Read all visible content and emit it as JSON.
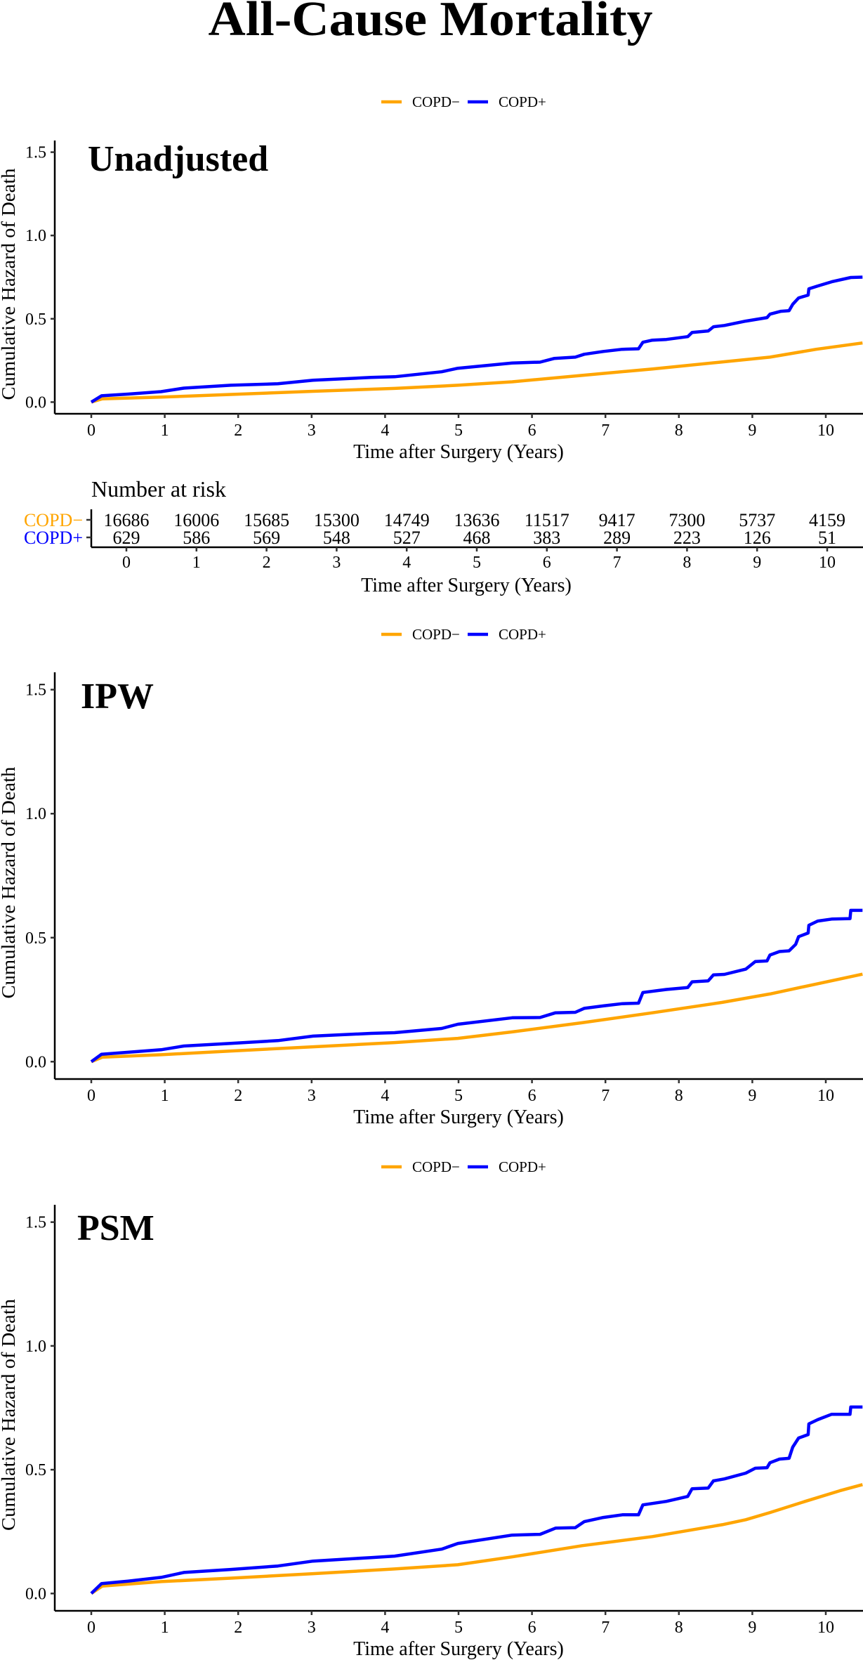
{
  "title": "All-Cause Mortality",
  "legend": {
    "items": [
      {
        "label": "COPD−",
        "color": "#FFA500"
      },
      {
        "label": "COPD+",
        "color": "#0000FF"
      }
    ]
  },
  "chart_data": [
    {
      "type": "line",
      "title": "Unadjusted",
      "xlabel": "Time after Surgery (Years)",
      "ylabel": "Cumulative Hazard of Death",
      "xlim": [
        -0.5,
        10.5
      ],
      "ylim": [
        -0.07,
        1.57
      ],
      "xticks": [
        "0",
        "1",
        "2",
        "3",
        "4",
        "5",
        "6",
        "7",
        "8",
        "9",
        "10"
      ],
      "yticks": [
        "0.0",
        "0.5",
        "1.0",
        "1.5"
      ],
      "grid": false,
      "legend": "top-center",
      "series": [
        {
          "name": "COPD−",
          "color": "#FFA500",
          "points": [
            [
              0,
              0
            ],
            [
              0.15,
              0.02
            ],
            [
              0.95,
              0.03
            ],
            [
              1.9,
              0.046
            ],
            [
              3.02,
              0.065
            ],
            [
              4.13,
              0.082
            ],
            [
              4.99,
              0.101
            ],
            [
              5.73,
              0.122
            ],
            [
              6.68,
              0.16
            ],
            [
              7.64,
              0.199
            ],
            [
              8.59,
              0.241
            ],
            [
              9.24,
              0.27
            ],
            [
              9.87,
              0.317
            ],
            [
              10.5,
              0.355
            ]
          ]
        },
        {
          "name": "COPD+",
          "color": "#0000FF",
          "points": [
            [
              0,
              0
            ],
            [
              0.14,
              0.038
            ],
            [
              0.5,
              0.048
            ],
            [
              0.95,
              0.063
            ],
            [
              1.26,
              0.084
            ],
            [
              1.9,
              0.101
            ],
            [
              2.54,
              0.11
            ],
            [
              3.02,
              0.131
            ],
            [
              3.81,
              0.148
            ],
            [
              4.13,
              0.152
            ],
            [
              4.77,
              0.182
            ],
            [
              4.99,
              0.203
            ],
            [
              5.73,
              0.235
            ],
            [
              6.11,
              0.24
            ],
            [
              6.3,
              0.262
            ],
            [
              6.59,
              0.27
            ],
            [
              6.71,
              0.287
            ],
            [
              6.97,
              0.304
            ],
            [
              7.23,
              0.317
            ],
            [
              7.45,
              0.32
            ],
            [
              7.51,
              0.359
            ],
            [
              7.64,
              0.372
            ],
            [
              7.83,
              0.376
            ],
            [
              8.12,
              0.393
            ],
            [
              8.18,
              0.418
            ],
            [
              8.4,
              0.427
            ],
            [
              8.47,
              0.452
            ],
            [
              8.62,
              0.46
            ],
            [
              8.91,
              0.486
            ],
            [
              9.2,
              0.507
            ],
            [
              9.24,
              0.528
            ],
            [
              9.39,
              0.545
            ],
            [
              9.5,
              0.549
            ],
            [
              9.55,
              0.587
            ],
            [
              9.63,
              0.625
            ],
            [
              9.76,
              0.642
            ],
            [
              9.77,
              0.68
            ],
            [
              9.89,
              0.697
            ],
            [
              10.08,
              0.722
            ],
            [
              10.34,
              0.748
            ],
            [
              10.5,
              0.75
            ]
          ]
        }
      ]
    },
    {
      "type": "line",
      "title": "IPW",
      "xlabel": "Time after Surgery (Years)",
      "ylabel": "Cumulative Hazard of Death",
      "xlim": [
        -0.5,
        10.5
      ],
      "ylim": [
        -0.07,
        1.57
      ],
      "xticks": [
        "0",
        "1",
        "2",
        "3",
        "4",
        "5",
        "6",
        "7",
        "8",
        "9",
        "10"
      ],
      "yticks": [
        "0.0",
        "0.5",
        "1.0",
        "1.5"
      ],
      "grid": false,
      "legend": "top-center",
      "series": [
        {
          "name": "COPD−",
          "color": "#FFA500",
          "points": [
            [
              0,
              0
            ],
            [
              0.15,
              0.018
            ],
            [
              0.95,
              0.028
            ],
            [
              1.9,
              0.043
            ],
            [
              3.02,
              0.06
            ],
            [
              4.13,
              0.077
            ],
            [
              4.99,
              0.094
            ],
            [
              5.73,
              0.12
            ],
            [
              6.68,
              0.157
            ],
            [
              7.64,
              0.197
            ],
            [
              8.59,
              0.239
            ],
            [
              9.24,
              0.273
            ],
            [
              9.87,
              0.313
            ],
            [
              10.5,
              0.353
            ]
          ]
        },
        {
          "name": "COPD+",
          "color": "#0000FF",
          "points": [
            [
              0,
              0
            ],
            [
              0.14,
              0.03
            ],
            [
              0.5,
              0.038
            ],
            [
              0.95,
              0.048
            ],
            [
              1.26,
              0.063
            ],
            [
              1.9,
              0.074
            ],
            [
              2.54,
              0.085
            ],
            [
              3.02,
              0.103
            ],
            [
              3.81,
              0.114
            ],
            [
              4.13,
              0.117
            ],
            [
              4.77,
              0.134
            ],
            [
              4.99,
              0.151
            ],
            [
              5.73,
              0.177
            ],
            [
              6.11,
              0.178
            ],
            [
              6.32,
              0.197
            ],
            [
              6.59,
              0.199
            ],
            [
              6.71,
              0.215
            ],
            [
              6.97,
              0.225
            ],
            [
              7.23,
              0.234
            ],
            [
              7.45,
              0.236
            ],
            [
              7.51,
              0.279
            ],
            [
              7.83,
              0.291
            ],
            [
              8.12,
              0.299
            ],
            [
              8.18,
              0.322
            ],
            [
              8.4,
              0.326
            ],
            [
              8.47,
              0.35
            ],
            [
              8.62,
              0.352
            ],
            [
              8.91,
              0.373
            ],
            [
              9.04,
              0.404
            ],
            [
              9.2,
              0.406
            ],
            [
              9.24,
              0.43
            ],
            [
              9.37,
              0.444
            ],
            [
              9.5,
              0.447
            ],
            [
              9.59,
              0.473
            ],
            [
              9.63,
              0.504
            ],
            [
              9.76,
              0.519
            ],
            [
              9.77,
              0.55
            ],
            [
              9.89,
              0.567
            ],
            [
              10.08,
              0.575
            ],
            [
              10.33,
              0.577
            ],
            [
              10.34,
              0.61
            ],
            [
              10.5,
              0.61
            ]
          ]
        }
      ]
    },
    {
      "type": "line",
      "title": "PSM",
      "xlabel": "Time after Surgery (Years)",
      "ylabel": "Cumulative Hazard of Death",
      "xlim": [
        -0.5,
        10.5
      ],
      "ylim": [
        -0.07,
        1.57
      ],
      "xticks": [
        "0",
        "1",
        "2",
        "3",
        "4",
        "5",
        "6",
        "7",
        "8",
        "9",
        "10"
      ],
      "yticks": [
        "0.0",
        "0.5",
        "1.0",
        "1.5"
      ],
      "grid": false,
      "legend": "top-center",
      "series": [
        {
          "name": "COPD−",
          "color": "#FFA500",
          "points": [
            [
              0,
              0
            ],
            [
              0.15,
              0.03
            ],
            [
              0.95,
              0.048
            ],
            [
              1.9,
              0.062
            ],
            [
              3.02,
              0.08
            ],
            [
              4.13,
              0.099
            ],
            [
              4.99,
              0.116
            ],
            [
              5.73,
              0.148
            ],
            [
              6.68,
              0.193
            ],
            [
              7.64,
              0.23
            ],
            [
              8.59,
              0.278
            ],
            [
              8.91,
              0.298
            ],
            [
              9.24,
              0.327
            ],
            [
              9.72,
              0.372
            ],
            [
              10.19,
              0.415
            ],
            [
              10.5,
              0.44
            ]
          ]
        },
        {
          "name": "COPD+",
          "color": "#0000FF",
          "points": [
            [
              0,
              0
            ],
            [
              0.14,
              0.04
            ],
            [
              0.5,
              0.05
            ],
            [
              0.95,
              0.065
            ],
            [
              1.26,
              0.085
            ],
            [
              1.9,
              0.097
            ],
            [
              2.54,
              0.111
            ],
            [
              3.02,
              0.131
            ],
            [
              3.81,
              0.145
            ],
            [
              4.13,
              0.151
            ],
            [
              4.77,
              0.179
            ],
            [
              4.99,
              0.202
            ],
            [
              5.73,
              0.236
            ],
            [
              6.11,
              0.239
            ],
            [
              6.32,
              0.264
            ],
            [
              6.59,
              0.266
            ],
            [
              6.71,
              0.29
            ],
            [
              6.97,
              0.307
            ],
            [
              7.23,
              0.318
            ],
            [
              7.45,
              0.318
            ],
            [
              7.51,
              0.358
            ],
            [
              7.83,
              0.372
            ],
            [
              8.12,
              0.392
            ],
            [
              8.18,
              0.423
            ],
            [
              8.4,
              0.426
            ],
            [
              8.47,
              0.455
            ],
            [
              8.62,
              0.463
            ],
            [
              8.91,
              0.486
            ],
            [
              9.04,
              0.506
            ],
            [
              9.2,
              0.508
            ],
            [
              9.24,
              0.528
            ],
            [
              9.37,
              0.543
            ],
            [
              9.5,
              0.546
            ],
            [
              9.55,
              0.591
            ],
            [
              9.63,
              0.628
            ],
            [
              9.76,
              0.642
            ],
            [
              9.77,
              0.685
            ],
            [
              9.89,
              0.702
            ],
            [
              10.08,
              0.724
            ],
            [
              10.33,
              0.724
            ],
            [
              10.34,
              0.753
            ],
            [
              10.5,
              0.753
            ]
          ]
        }
      ]
    }
  ],
  "risk_table": {
    "title": "Number at risk",
    "xlabel": "Time after Surgery (Years)",
    "xticks": [
      "0",
      "1",
      "2",
      "3",
      "4",
      "5",
      "6",
      "7",
      "8",
      "9",
      "10"
    ],
    "rows": [
      {
        "label": "COPD−",
        "color": "#FFA500",
        "values": [
          "16686",
          "16006",
          "15685",
          "15300",
          "14749",
          "13636",
          "11517",
          "9417",
          "7300",
          "5737",
          "4159"
        ]
      },
      {
        "label": "COPD+",
        "color": "#0000FF",
        "values": [
          "629",
          "586",
          "569",
          "548",
          "527",
          "468",
          "383",
          "289",
          "223",
          "126",
          "51"
        ]
      }
    ]
  }
}
